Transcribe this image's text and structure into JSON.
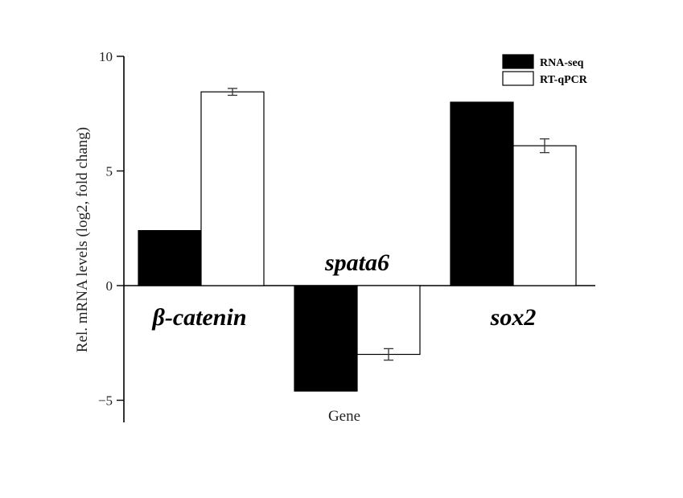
{
  "chart_data": {
    "type": "bar",
    "categories": [
      "β-catenin",
      "spata6",
      "sox2"
    ],
    "series": [
      {
        "name": "RNA-seq",
        "values": [
          2.4,
          -4.6,
          8.0
        ],
        "errors": [
          0,
          0,
          0
        ],
        "color": "#000000"
      },
      {
        "name": "RT-qPCR",
        "values": [
          8.45,
          -3.0,
          6.1
        ],
        "errors": [
          0.15,
          0.25,
          0.3
        ],
        "color": "#ffffff"
      }
    ],
    "xlabel": "Gene",
    "ylabel": "Rel. mRNA levels (log2, fold chang)",
    "ylim": [
      -6,
      10
    ],
    "yticks": [
      -5,
      0,
      5,
      10
    ],
    "ytick_labels": [
      "−5",
      "0",
      "5",
      "10"
    ],
    "legend_position": "top-right"
  }
}
